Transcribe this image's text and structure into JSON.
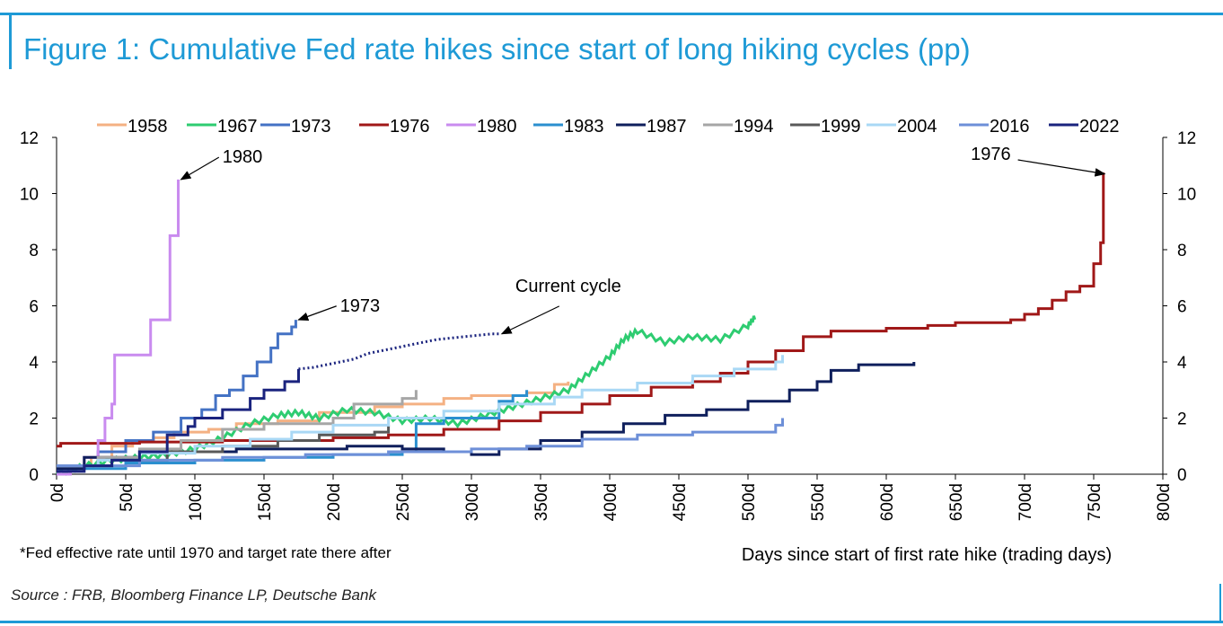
{
  "header": {
    "title": "Figure 1: Cumulative Fed rate hikes since start of long hiking cycles (pp)"
  },
  "footer": {
    "note": "*Fed effective rate until 1970 and target rate there after",
    "source": "Source : FRB, Bloomberg Finance LP, Deutsche Bank"
  },
  "chart_data": {
    "type": "line",
    "title": "Figure 1: Cumulative Fed rate hikes since start of long hiking cycles (pp)",
    "xlabel": "Days since start of first rate hike (trading days)",
    "ylabel": "",
    "xlim": [
      0,
      800
    ],
    "ylim": [
      0,
      12
    ],
    "x_ticks": [
      "0d",
      "50d",
      "100d",
      "150d",
      "200d",
      "250d",
      "300d",
      "350d",
      "400d",
      "450d",
      "500d",
      "550d",
      "600d",
      "650d",
      "700d",
      "750d",
      "800d"
    ],
    "y_ticks": [
      "0",
      "2",
      "4",
      "6",
      "8",
      "10",
      "12"
    ],
    "y_ticks_right": [
      "0",
      "2",
      "4",
      "6",
      "8",
      "10",
      "12"
    ],
    "grid": false,
    "legend_position": "top",
    "series": [
      {
        "name": "1958",
        "color": "#f4b183",
        "type": "step",
        "points": [
          [
            0,
            0
          ],
          [
            10,
            0.3
          ],
          [
            25,
            0.6
          ],
          [
            40,
            1.0
          ],
          [
            55,
            1.2
          ],
          [
            70,
            1.3
          ],
          [
            85,
            1.5
          ],
          [
            110,
            1.6
          ],
          [
            130,
            1.8
          ],
          [
            160,
            1.9
          ],
          [
            190,
            2.2
          ],
          [
            230,
            2.4
          ],
          [
            250,
            2.5
          ],
          [
            280,
            2.7
          ],
          [
            300,
            2.8
          ],
          [
            340,
            2.9
          ],
          [
            360,
            3.2
          ],
          [
            370,
            3.3
          ]
        ]
      },
      {
        "name": "1967",
        "color": "#2ecc71",
        "type": "wiggle",
        "points": [
          [
            0,
            0
          ],
          [
            20,
            0.3
          ],
          [
            40,
            0.5
          ],
          [
            60,
            0.6
          ],
          [
            80,
            0.7
          ],
          [
            100,
            0.9
          ],
          [
            120,
            1.3
          ],
          [
            140,
            1.8
          ],
          [
            160,
            2.1
          ],
          [
            175,
            2.2
          ],
          [
            190,
            2.0
          ],
          [
            210,
            2.3
          ],
          [
            230,
            2.2
          ],
          [
            250,
            1.9
          ],
          [
            270,
            2.0
          ],
          [
            290,
            1.8
          ],
          [
            310,
            2.1
          ],
          [
            330,
            2.4
          ],
          [
            350,
            2.7
          ],
          [
            370,
            3.0
          ],
          [
            385,
            3.6
          ],
          [
            400,
            4.2
          ],
          [
            410,
            4.8
          ],
          [
            420,
            5.1
          ],
          [
            440,
            4.7
          ],
          [
            460,
            4.9
          ],
          [
            480,
            4.8
          ],
          [
            500,
            5.3
          ],
          [
            505,
            5.6
          ]
        ]
      },
      {
        "name": "1973",
        "color": "#4472c4",
        "type": "step",
        "points": [
          [
            0,
            0.3
          ],
          [
            30,
            0.8
          ],
          [
            50,
            1.2
          ],
          [
            70,
            1.5
          ],
          [
            90,
            2.0
          ],
          [
            105,
            2.3
          ],
          [
            115,
            2.8
          ],
          [
            125,
            3.0
          ],
          [
            135,
            3.5
          ],
          [
            145,
            4.0
          ],
          [
            155,
            4.5
          ],
          [
            160,
            5.0
          ],
          [
            170,
            5.25
          ],
          [
            173,
            5.5
          ]
        ]
      },
      {
        "name": "1976",
        "color": "#a01818",
        "type": "step",
        "points": [
          [
            0,
            1.0
          ],
          [
            3,
            1.1
          ],
          [
            60,
            1.15
          ],
          [
            120,
            1.2
          ],
          [
            200,
            1.3
          ],
          [
            240,
            1.4
          ],
          [
            280,
            1.6
          ],
          [
            320,
            1.9
          ],
          [
            350,
            2.2
          ],
          [
            380,
            2.5
          ],
          [
            400,
            2.8
          ],
          [
            430,
            3.1
          ],
          [
            460,
            3.3
          ],
          [
            480,
            3.6
          ],
          [
            500,
            4.0
          ],
          [
            520,
            4.4
          ],
          [
            540,
            4.9
          ],
          [
            560,
            5.1
          ],
          [
            600,
            5.2
          ],
          [
            630,
            5.3
          ],
          [
            650,
            5.4
          ],
          [
            690,
            5.5
          ],
          [
            700,
            5.7
          ],
          [
            710,
            5.9
          ],
          [
            720,
            6.2
          ],
          [
            730,
            6.5
          ],
          [
            740,
            6.7
          ],
          [
            750,
            7.5
          ],
          [
            755,
            8.25
          ],
          [
            757,
            10.75
          ]
        ]
      },
      {
        "name": "1980",
        "color": "#c98bef",
        "type": "step",
        "points": [
          [
            0,
            0
          ],
          [
            10,
            0.3
          ],
          [
            20,
            0.6
          ],
          [
            30,
            1.2
          ],
          [
            35,
            2.0
          ],
          [
            40,
            2.5
          ],
          [
            42,
            4.25
          ],
          [
            65,
            4.25
          ],
          [
            68,
            5.5
          ],
          [
            80,
            5.5
          ],
          [
            82,
            8.5
          ],
          [
            87,
            8.5
          ],
          [
            88,
            10.5
          ]
        ]
      },
      {
        "name": "1983",
        "color": "#2b8fcf",
        "type": "step",
        "points": [
          [
            0,
            0.2
          ],
          [
            50,
            0.4
          ],
          [
            100,
            0.5
          ],
          [
            150,
            0.6
          ],
          [
            200,
            0.7
          ],
          [
            250,
            0.8
          ],
          [
            260,
            1.8
          ],
          [
            280,
            2.0
          ],
          [
            320,
            2.6
          ],
          [
            330,
            2.8
          ],
          [
            340,
            3.0
          ]
        ]
      },
      {
        "name": "1987",
        "color": "#0f1f5c",
        "type": "step",
        "points": [
          [
            0,
            0.2
          ],
          [
            20,
            0.6
          ],
          [
            60,
            0.8
          ],
          [
            100,
            0.8
          ],
          [
            130,
            0.9
          ],
          [
            180,
            0.9
          ],
          [
            210,
            1.0
          ],
          [
            250,
            0.9
          ],
          [
            280,
            0.8
          ],
          [
            300,
            0.7
          ],
          [
            320,
            0.9
          ],
          [
            350,
            1.2
          ],
          [
            380,
            1.5
          ],
          [
            410,
            1.8
          ],
          [
            440,
            2.1
          ],
          [
            470,
            2.3
          ],
          [
            500,
            2.6
          ],
          [
            530,
            3.0
          ],
          [
            550,
            3.3
          ],
          [
            560,
            3.7
          ],
          [
            580,
            3.9
          ],
          [
            610,
            3.9
          ],
          [
            620,
            4.0
          ]
        ]
      },
      {
        "name": "1994",
        "color": "#a6a6a6",
        "type": "step",
        "points": [
          [
            0,
            0.3
          ],
          [
            30,
            0.6
          ],
          [
            60,
            0.9
          ],
          [
            90,
            1.2
          ],
          [
            120,
            1.6
          ],
          [
            150,
            1.8
          ],
          [
            200,
            2.0
          ],
          [
            215,
            2.5
          ],
          [
            230,
            2.5
          ],
          [
            250,
            2.7
          ],
          [
            260,
            3.0
          ]
        ]
      },
      {
        "name": "1999",
        "color": "#595959",
        "type": "step",
        "points": [
          [
            0,
            0.3
          ],
          [
            40,
            0.5
          ],
          [
            80,
            0.8
          ],
          [
            120,
            1.0
          ],
          [
            160,
            1.2
          ],
          [
            190,
            1.4
          ],
          [
            230,
            1.5
          ],
          [
            240,
            1.75
          ]
        ]
      },
      {
        "name": "2004",
        "color": "#a9d8f5",
        "type": "step",
        "points": [
          [
            0,
            0.3
          ],
          [
            30,
            0.5
          ],
          [
            60,
            0.75
          ],
          [
            100,
            1.0
          ],
          [
            140,
            1.25
          ],
          [
            170,
            1.5
          ],
          [
            200,
            1.75
          ],
          [
            240,
            2.0
          ],
          [
            280,
            2.25
          ],
          [
            320,
            2.5
          ],
          [
            360,
            2.75
          ],
          [
            380,
            3.0
          ],
          [
            420,
            3.25
          ],
          [
            460,
            3.5
          ],
          [
            490,
            3.75
          ],
          [
            520,
            4.0
          ],
          [
            525,
            4.25
          ]
        ]
      },
      {
        "name": "2016",
        "color": "#6d8fd8",
        "type": "step",
        "points": [
          [
            0,
            0.3
          ],
          [
            60,
            0.5
          ],
          [
            120,
            0.6
          ],
          [
            180,
            0.7
          ],
          [
            240,
            0.8
          ],
          [
            300,
            0.9
          ],
          [
            340,
            1.0
          ],
          [
            380,
            1.25
          ],
          [
            420,
            1.4
          ],
          [
            460,
            1.5
          ],
          [
            520,
            1.75
          ],
          [
            525,
            2.0
          ]
        ]
      },
      {
        "name": "2022",
        "color": "#1a237e",
        "type": "step",
        "points": [
          [
            0,
            0.1
          ],
          [
            20,
            0.3
          ],
          [
            40,
            0.5
          ],
          [
            60,
            0.8
          ],
          [
            80,
            1.4
          ],
          [
            95,
            1.7
          ],
          [
            100,
            2.0
          ],
          [
            120,
            2.3
          ],
          [
            140,
            2.7
          ],
          [
            150,
            3.0
          ],
          [
            165,
            3.3
          ],
          [
            175,
            3.75
          ]
        ]
      },
      {
        "name": "",
        "color": "#1a237e",
        "type": "dotted",
        "points": [
          [
            175,
            3.75
          ],
          [
            185,
            3.8
          ],
          [
            195,
            3.9
          ],
          [
            205,
            4.0
          ],
          [
            215,
            4.1
          ],
          [
            225,
            4.3
          ],
          [
            235,
            4.4
          ],
          [
            245,
            4.5
          ],
          [
            255,
            4.6
          ],
          [
            265,
            4.7
          ],
          [
            275,
            4.8
          ],
          [
            285,
            4.85
          ],
          [
            295,
            4.9
          ],
          [
            305,
            4.95
          ],
          [
            315,
            5.0
          ],
          [
            320,
            5.0
          ]
        ]
      }
    ],
    "annotations": [
      {
        "text": "1980",
        "point": [
          88,
          10.5
        ],
        "text_at": [
          120,
          11.1
        ]
      },
      {
        "text": "1976",
        "point": [
          756,
          10.7
        ],
        "text_at": [
          690,
          11.2
        ]
      },
      {
        "text": "1973",
        "point": [
          173,
          5.5
        ],
        "text_at": [
          205,
          5.8
        ]
      },
      {
        "text": "Current cycle",
        "point": [
          320,
          5.0
        ],
        "text_at": [
          370,
          6.5
        ]
      }
    ]
  }
}
